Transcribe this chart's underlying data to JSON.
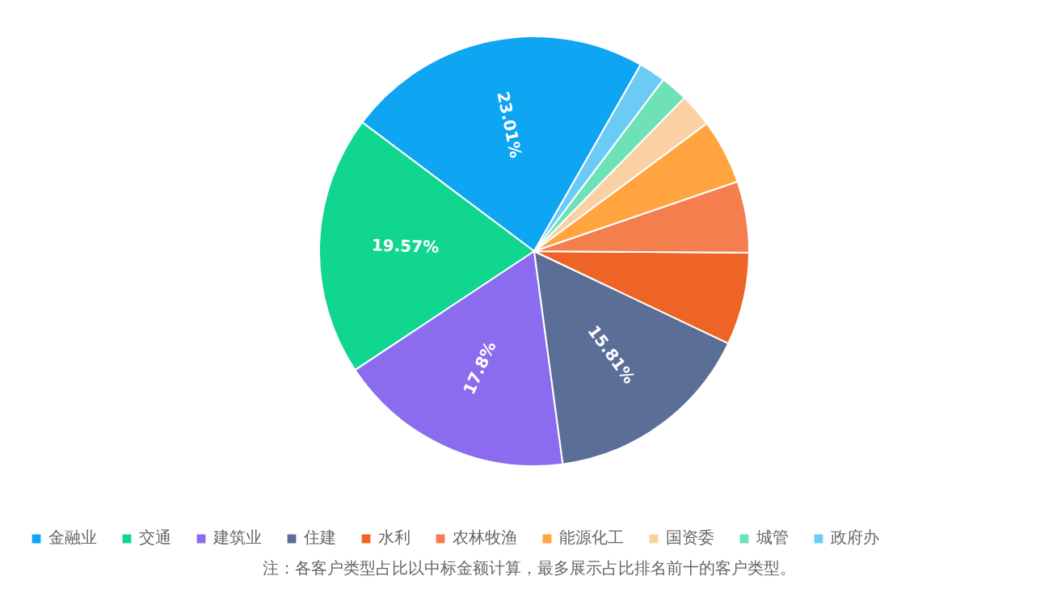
{
  "chart_data": {
    "type": "pie",
    "categories": [
      "金融业",
      "交通",
      "建筑业",
      "住建",
      "水利",
      "农林牧渔",
      "能源化工",
      "国资委",
      "城管",
      "政府办"
    ],
    "values": [
      23.01,
      19.57,
      17.8,
      15.81,
      6.96,
      5.36,
      4.89,
      2.52,
      2.07,
      2.01
    ],
    "colors": [
      "#0ea5f2",
      "#10d690",
      "#8b6cee",
      "#5b6e96",
      "#ee6426",
      "#f57e4e",
      "#ffa43f",
      "#fbd0a2",
      "#6ee2b6",
      "#6ccbf5"
    ],
    "value_labels": [
      "23.01%",
      "19.57%",
      "17.8%",
      "15.81%",
      null,
      null,
      null,
      null,
      null,
      null
    ],
    "legend": "bottom",
    "annotations": [
      "注：各客户类型占比以中标金额计算，最多展示占比排名前十的客户类型。"
    ]
  }
}
